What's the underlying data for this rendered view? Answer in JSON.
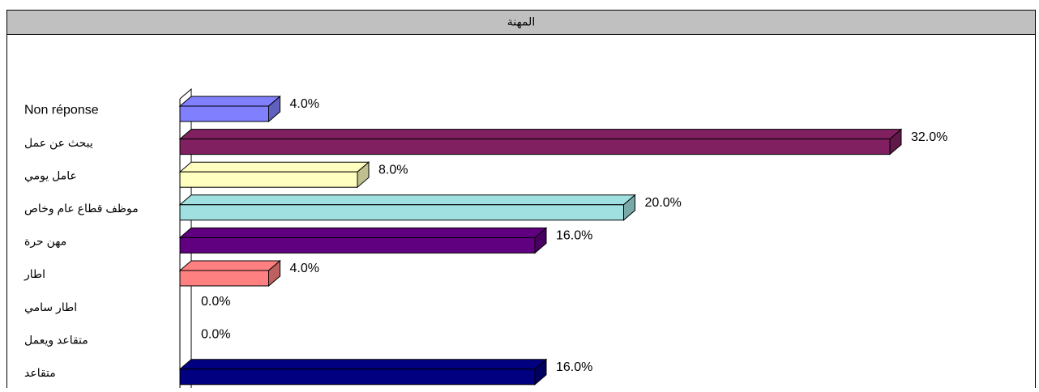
{
  "chart_data": {
    "type": "hbar3d",
    "title": "المهنة",
    "categories": [
      "Non réponse",
      "يبحث عن عمل",
      "عامل يومي",
      "موظف قطاع عام وخاص",
      "مهن حرة",
      "اطار",
      "اطار سامي",
      "متقاعد ويعمل",
      "متقاعد"
    ],
    "values": [
      4,
      32,
      8,
      20,
      16,
      4,
      0,
      0,
      16
    ],
    "value_labels": [
      "4.0%",
      "32.0%",
      "8.0%",
      "20.0%",
      "16.0%",
      "4.0%",
      "0.0%",
      "0.0%",
      "16.0%"
    ],
    "colors": [
      "#8080ff",
      "#802060",
      "#ffffc0",
      "#a0e0e0",
      "#600080",
      "#ff8080",
      "#c0c0c0",
      "#c0c0c0",
      "#000080"
    ]
  }
}
